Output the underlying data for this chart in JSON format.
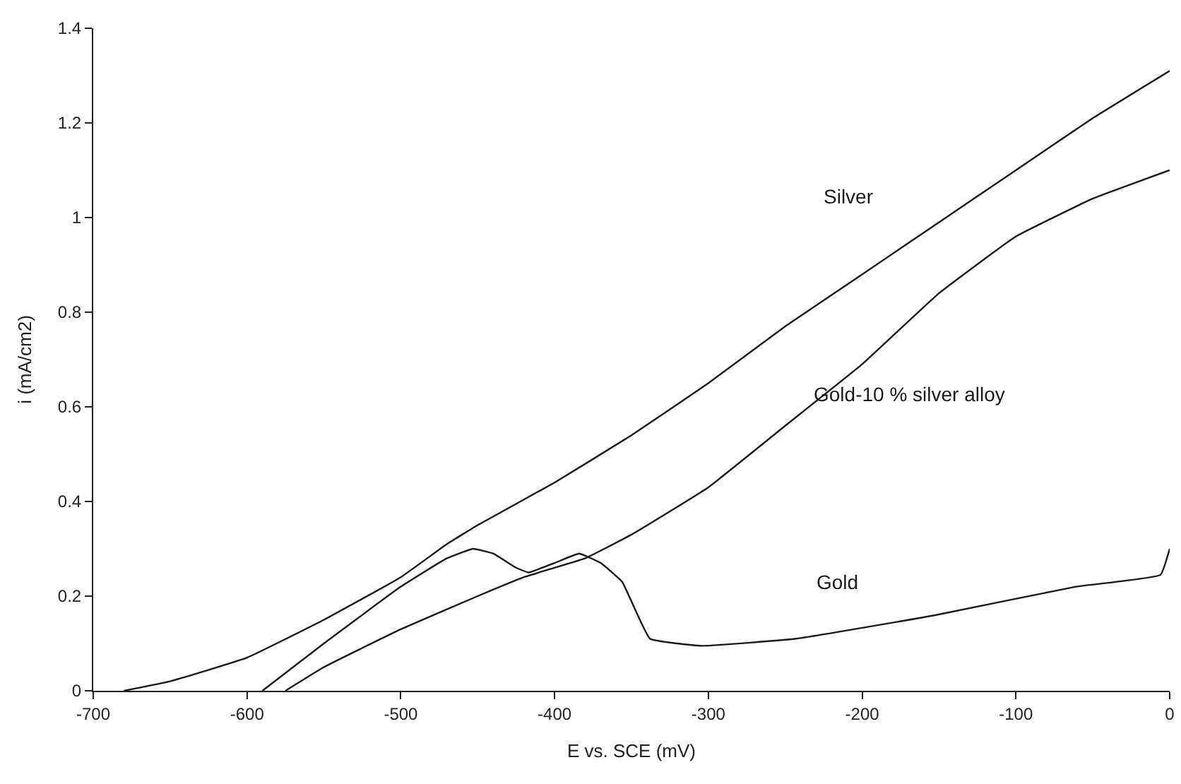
{
  "chart_data": {
    "type": "line",
    "xlabel": "E vs. SCE (mV)",
    "ylabel": "i (mA/cm2)",
    "xlim": [
      -700,
      0
    ],
    "ylim": [
      0,
      1.4
    ],
    "xticks": [
      -700,
      -600,
      -500,
      -400,
      -300,
      -200,
      -100,
      0
    ],
    "yticks": [
      0,
      0.2,
      0.4,
      0.6,
      0.8,
      1,
      1.2,
      1.4
    ],
    "legend": false,
    "marker": "none",
    "line_style": "solid",
    "series": [
      {
        "name": "Silver",
        "color": "#1a1a1a",
        "x": [
          -680,
          -650,
          -600,
          -550,
          -500,
          -470,
          -450,
          -400,
          -350,
          -300,
          -250,
          -200,
          -150,
          -100,
          -50,
          0
        ],
        "values": [
          0,
          0.02,
          0.07,
          0.15,
          0.24,
          0.31,
          0.35,
          0.44,
          0.54,
          0.65,
          0.77,
          0.88,
          0.99,
          1.1,
          1.21,
          1.31
        ]
      },
      {
        "name": "Gold-10 % silver alloy",
        "color": "#1a1a1a",
        "x": [
          -575,
          -550,
          -500,
          -450,
          -420,
          -400,
          -380,
          -350,
          -300,
          -250,
          -200,
          -150,
          -100,
          -50,
          0
        ],
        "values": [
          0,
          0.05,
          0.13,
          0.2,
          0.24,
          0.26,
          0.28,
          0.33,
          0.43,
          0.56,
          0.69,
          0.84,
          0.96,
          1.04,
          1.1
        ]
      },
      {
        "name": "Gold",
        "color": "#1a1a1a",
        "x": [
          -590,
          -550,
          -500,
          -470,
          -453,
          -440,
          -425,
          -417,
          -400,
          -384,
          -370,
          -356,
          -338,
          -304,
          -243,
          -152,
          -61,
          -6,
          0
        ],
        "values": [
          0,
          0.1,
          0.22,
          0.28,
          0.3,
          0.29,
          0.26,
          0.25,
          0.27,
          0.29,
          0.27,
          0.23,
          0.11,
          0.095,
          0.11,
          0.16,
          0.22,
          0.245,
          0.3
        ]
      }
    ]
  }
}
